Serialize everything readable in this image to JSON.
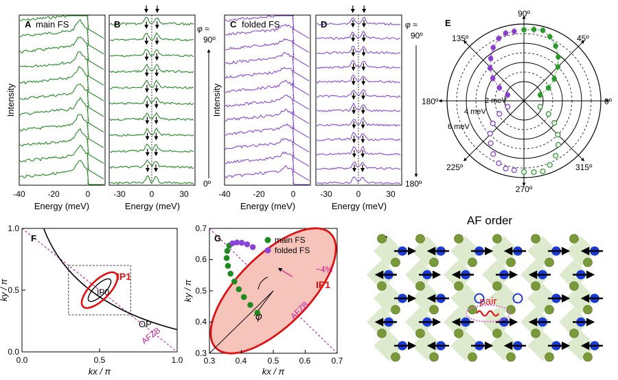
{
  "panelA": {
    "letter": "A",
    "title": "main FS",
    "ylabel": "Intensity",
    "xlabel": "Energy (meV)",
    "ticks": [
      "-40",
      "-20",
      "0"
    ]
  },
  "panelB": {
    "letter": "B",
    "xlabel": "Energy (meV)",
    "ticks": [
      "-30",
      "0",
      "30"
    ]
  },
  "phiScaleLeft": {
    "phi": "φ ≈",
    "top": "90º",
    "bottom": "0º"
  },
  "panelC": {
    "letter": "C",
    "title": "folded FS",
    "ylabel": "Intensity",
    "xlabel": "Energy (meV)",
    "ticks": [
      "-40",
      "-20",
      "0"
    ]
  },
  "panelD": {
    "letter": "D",
    "xlabel": "Energy (meV)",
    "ticks": [
      "-30",
      "0",
      "30"
    ]
  },
  "phiScaleRight": {
    "phi": "φ ≈",
    "top": "90º",
    "bottom": "180º"
  },
  "panelE": {
    "letter": "E",
    "angles": [
      "0º",
      "45º",
      "90º",
      "135º",
      "180º",
      "225º",
      "270º",
      "315º"
    ],
    "radii": [
      "2 meV",
      "4 meV",
      "6 meV"
    ],
    "colors": {
      "main": "#2a9a2a",
      "folded": "#8a3fd0"
    }
  },
  "panelF": {
    "letter": "F",
    "xlabel": "kx / π",
    "ylabel": "ky / π",
    "xticks": [
      "0.0",
      "0.5",
      "1.0"
    ],
    "yticks": [
      "0.0",
      "0.5",
      "1.0"
    ],
    "labels": {
      "ip1": "IP1",
      "ip0": "IP0",
      "op": "OP",
      "afzb": "AFZB"
    }
  },
  "panelG": {
    "letter": "G",
    "xlabel": "kx / π",
    "ylabel": "ky / π",
    "xticks": [
      "0.3",
      "0.4",
      "0.5",
      "0.6",
      "0.7"
    ],
    "yticks": [
      "0.3",
      "0.4",
      "0.5",
      "0.6",
      "0.7"
    ],
    "legend": [
      "main FS",
      "folded FS"
    ],
    "labels": {
      "phi": "φ",
      "pct": "~4%",
      "ip1": "IP1",
      "afzb": "AFZB"
    }
  },
  "panelH": {
    "letter": "H",
    "title": "AF order",
    "pair": "pair"
  },
  "chart_data": [
    {
      "type": "line",
      "name": "A",
      "x_range": [
        -40,
        10
      ],
      "curves": 11,
      "ytick_labels_visible": false
    },
    {
      "type": "line",
      "name": "B",
      "x_range": [
        -35,
        35
      ],
      "curves": 11
    },
    {
      "type": "line",
      "name": "C",
      "x_range": [
        -40,
        10
      ],
      "curves": 12
    },
    {
      "type": "line",
      "name": "D",
      "x_range": [
        -35,
        35
      ],
      "curves": 12
    },
    {
      "type": "scatter",
      "name": "E polar gap",
      "series": [
        {
          "name": "main FS",
          "points": [
            [
              90,
              7.4
            ],
            [
              82,
              7.5
            ],
            [
              75,
              7.6
            ],
            [
              68,
              7.2
            ],
            [
              60,
              6.6
            ],
            [
              52,
              5.8
            ],
            [
              45,
              5.0
            ],
            [
              36,
              3.9
            ],
            [
              28,
              2.9
            ],
            [
              20,
              1.8
            ]
          ]
        },
        {
          "name": "folded FS",
          "points": [
            [
              98,
              7.3
            ],
            [
              105,
              7.3
            ],
            [
              112,
              7.0
            ],
            [
              120,
              6.4
            ],
            [
              128,
              5.6
            ],
            [
              136,
              4.9
            ],
            [
              144,
              4.0
            ],
            [
              152,
              2.9
            ],
            [
              160,
              1.8
            ]
          ]
        }
      ]
    },
    {
      "type": "scatter",
      "name": "G Fermi surface",
      "xlim": [
        0.3,
        0.7
      ],
      "ylim": [
        0.3,
        0.7
      ],
      "series": [
        {
          "name": "main FS",
          "x": [
            0.45,
            0.428,
            0.408,
            0.392,
            0.378,
            0.366,
            0.358,
            0.354,
            0.356,
            0.362
          ],
          "y": [
            0.43,
            0.455,
            0.48,
            0.505,
            0.53,
            0.555,
            0.58,
            0.605,
            0.628,
            0.645
          ]
        },
        {
          "name": "folded FS",
          "x": [
            0.372,
            0.386,
            0.401,
            0.418,
            0.436
          ],
          "y": [
            0.652,
            0.655,
            0.654,
            0.649,
            0.64
          ]
        }
      ]
    }
  ]
}
